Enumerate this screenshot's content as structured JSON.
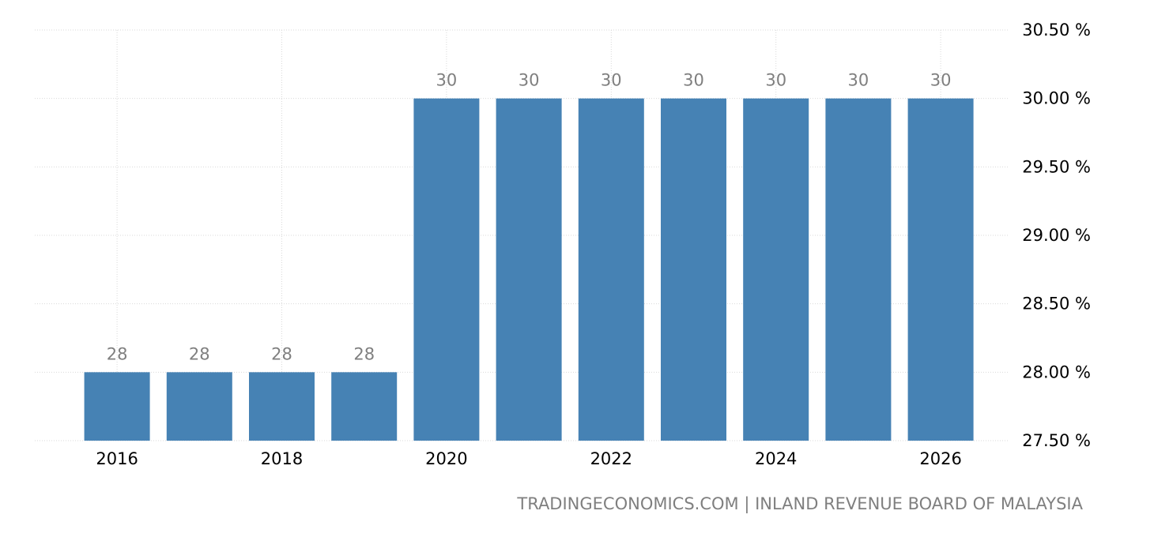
{
  "chart_data": {
    "type": "bar",
    "categories": [
      "2016",
      "2017",
      "2018",
      "2019",
      "2020",
      "2021",
      "2022",
      "2023",
      "2024",
      "2025",
      "2026"
    ],
    "values": [
      28,
      28,
      28,
      28,
      30,
      30,
      30,
      30,
      30,
      30,
      30
    ],
    "data_labels": [
      "28",
      "28",
      "28",
      "28",
      "30",
      "30",
      "30",
      "30",
      "30",
      "30",
      "30"
    ],
    "x_tick_labels": [
      "2016",
      "",
      "2018",
      "",
      "2020",
      "",
      "2022",
      "",
      "2024",
      "",
      "2026"
    ],
    "y_ticks": [
      27.5,
      28.0,
      28.5,
      29.0,
      29.5,
      30.0,
      30.5
    ],
    "y_tick_labels": [
      "27.50 %",
      "28.00 %",
      "28.50 %",
      "29.00 %",
      "29.50 %",
      "30.00 %",
      "30.50 %"
    ],
    "ylim": [
      27.5,
      30.5
    ],
    "y_axis_position": "right",
    "grid": true,
    "bar_color": "#4682b4",
    "title": "",
    "xlabel": "",
    "ylabel": ""
  },
  "source_text": "TRADINGECONOMICS.COM  |  INLAND REVENUE BOARD OF MALAYSIA"
}
